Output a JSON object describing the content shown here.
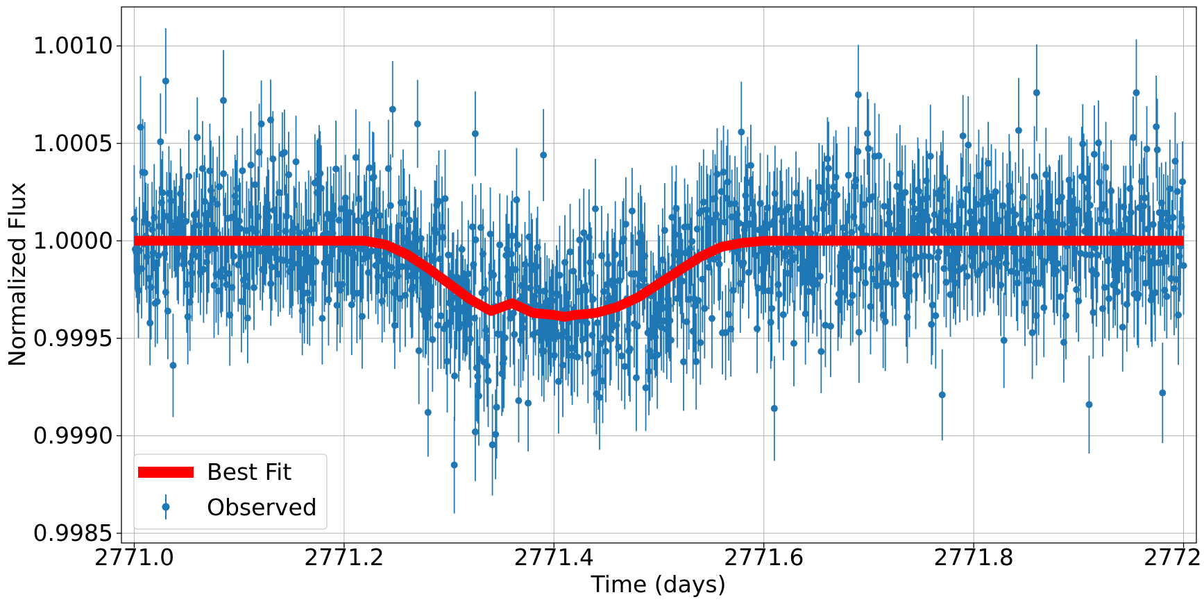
{
  "chart_data": {
    "type": "scatter",
    "title": "",
    "xlabel": "Time (days)",
    "ylabel": "Normalized Flux",
    "xlim": [
      2770.9878,
      2772.0122
    ],
    "ylim": [
      0.99845,
      1.0012
    ],
    "xticks": [
      2771.0,
      2771.2,
      2771.4,
      2771.6,
      2771.8,
      2772.0
    ],
    "xtick_labels": [
      "2771.0",
      "2771.2",
      "2771.4",
      "2771.6",
      "2771.8",
      "2772.0"
    ],
    "yticks": [
      0.9985,
      0.999,
      0.9995,
      1.0,
      1.0005,
      1.001
    ],
    "ytick_labels": [
      "0.9985",
      "0.9990",
      "0.9995",
      "1.0000",
      "1.0005",
      "1.0010"
    ],
    "grid": true,
    "legend_position": "bottom-left",
    "observed_color": "#1f77b4",
    "fit_color": "#ff0000",
    "series": [
      {
        "name": "Best Fit",
        "kind": "line",
        "x": [
          2771.0,
          2771.05,
          2771.1,
          2771.15,
          2771.2,
          2771.22,
          2771.24,
          2771.26,
          2771.28,
          2771.3,
          2771.32,
          2771.34,
          2771.36,
          2771.38,
          2771.4,
          2771.41,
          2771.42,
          2771.44,
          2771.46,
          2771.48,
          2771.5,
          2771.52,
          2771.54,
          2771.56,
          2771.58,
          2771.6,
          2771.7,
          2771.8,
          2771.9,
          2772.0
        ],
        "y": [
          1.0,
          1.0,
          1.0,
          1.0,
          1.0,
          1.0,
          0.99998,
          0.99993,
          0.99986,
          0.99978,
          0.9997,
          0.99964,
          0.99968,
          0.99963,
          0.99962,
          0.99961,
          0.99962,
          0.99963,
          0.99966,
          0.99971,
          0.99978,
          0.99985,
          0.99992,
          0.99997,
          0.99999,
          1.0,
          1.0,
          1.0,
          1.0,
          1.0
        ]
      },
      {
        "name": "Observed",
        "kind": "errorbar",
        "count": 1000,
        "x_start": 2771.0,
        "x_end": 2772.0,
        "noise_sigma": 0.00022,
        "error_sigma": 0.00024,
        "highlighted_points": [
          {
            "x": 2771.03,
            "y": 1.00082
          },
          {
            "x": 2771.085,
            "y": 1.00072
          },
          {
            "x": 2771.13,
            "y": 1.00062
          },
          {
            "x": 2771.27,
            "y": 1.0006
          },
          {
            "x": 2771.325,
            "y": 1.00055
          },
          {
            "x": 2771.39,
            "y": 1.00044
          },
          {
            "x": 2771.305,
            "y": 0.99885
          },
          {
            "x": 2771.28,
            "y": 0.99912
          },
          {
            "x": 2771.325,
            "y": 0.99902
          },
          {
            "x": 2771.69,
            "y": 1.00075
          },
          {
            "x": 2771.86,
            "y": 1.00076
          },
          {
            "x": 2771.955,
            "y": 1.00076
          },
          {
            "x": 2771.61,
            "y": 0.99914
          },
          {
            "x": 2771.77,
            "y": 0.99921
          },
          {
            "x": 2771.98,
            "y": 0.99922
          },
          {
            "x": 2771.91,
            "y": 0.99916
          }
        ]
      }
    ]
  }
}
